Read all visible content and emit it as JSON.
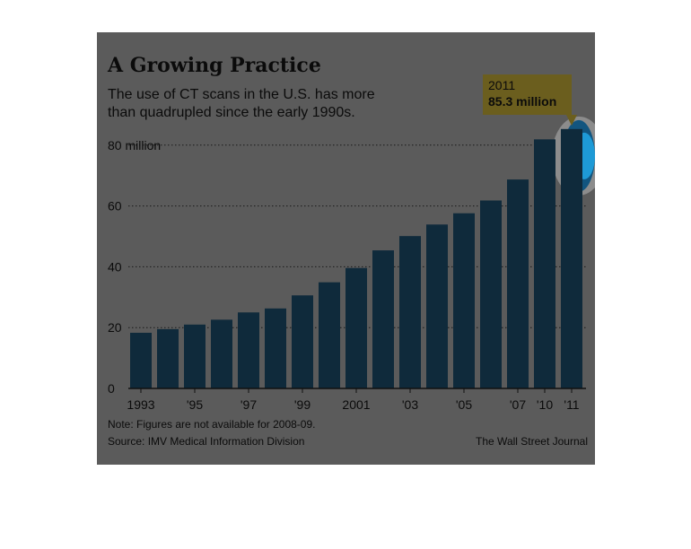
{
  "title": "A Growing Practice",
  "subtitle": "The use of CT scans in the U.S. has more than quadrupled since the early 1990s.",
  "callout": {
    "year": "2011",
    "value": "85.3 million"
  },
  "note": "Note: Figures are not available for 2008-09.",
  "source": "Source: IMV Medical Information Division",
  "credit": "The Wall Street Journal",
  "colors": {
    "background": "#5b5b5b",
    "bar": "#0f2a3b",
    "callout": "#6b5e1e",
    "highlight": "#1e9ad6"
  },
  "chart_data": {
    "type": "bar",
    "categories": [
      "1993",
      "1994",
      "1995",
      "1996",
      "1997",
      "1998",
      "1999",
      "2000",
      "2001",
      "2002",
      "2003",
      "2004",
      "2005",
      "2006",
      "2007",
      "2010",
      "2011"
    ],
    "values": [
      18.3,
      19.5,
      21.0,
      22.6,
      25.0,
      26.3,
      30.6,
      34.9,
      39.6,
      45.4,
      50.1,
      53.9,
      57.6,
      61.8,
      68.7,
      81.9,
      85.3
    ],
    "x_tick_labels": [
      "1993",
      "",
      "'95",
      "",
      "'97",
      "",
      "'99",
      "",
      "2001",
      "",
      "'03",
      "",
      "'05",
      "",
      "'07",
      "'10",
      "'11"
    ],
    "y_ticks": [
      0,
      20,
      40,
      60,
      80
    ],
    "y_tick_labels": [
      "0",
      "20",
      "40",
      "60",
      "80 million"
    ],
    "ylim": [
      0,
      90
    ],
    "gridlines": "dotted",
    "xlabel": "",
    "ylabel": ""
  }
}
